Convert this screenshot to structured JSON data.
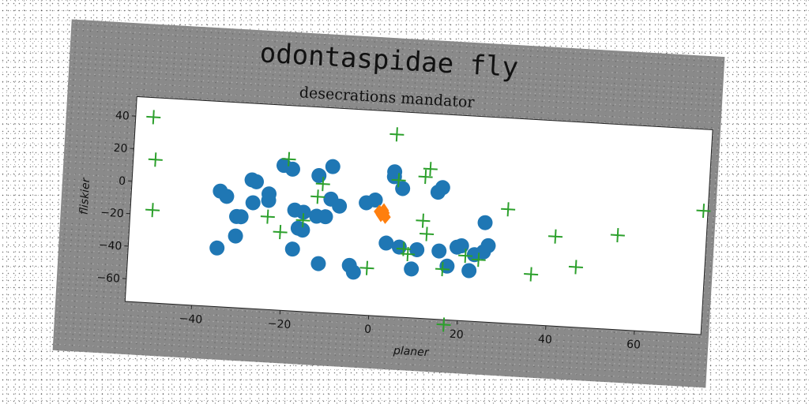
{
  "chart_data": {
    "type": "scatter",
    "title": "odontaspidae fly",
    "subtitle": "desecrations mandator",
    "xlabel": "planer",
    "ylabel": "fliskier",
    "xlim": [
      -55,
      75
    ],
    "ylim": [
      -74,
      52
    ],
    "xticks": [
      -40,
      -20,
      0,
      20,
      40,
      60
    ],
    "yticks": [
      -60,
      -40,
      -20,
      0,
      20,
      40
    ],
    "grid": false,
    "series": [
      {
        "marker": "circle",
        "color": "#1f77b4",
        "points": [
          [
            -35,
            -3
          ],
          [
            -33.5,
            -6
          ],
          [
            -31,
            -18
          ],
          [
            -31,
            -30
          ],
          [
            -30,
            -18
          ],
          [
            -28,
            5
          ],
          [
            -27,
            4
          ],
          [
            -27.5,
            -9
          ],
          [
            -24,
            -3
          ],
          [
            -24,
            -7
          ],
          [
            -35,
            -38
          ],
          [
            -21,
            15
          ],
          [
            -19,
            13
          ],
          [
            -18,
            -12
          ],
          [
            -18,
            -36
          ],
          [
            -17,
            -23
          ],
          [
            -16,
            -24
          ],
          [
            -16,
            -13
          ],
          [
            -13,
            10
          ],
          [
            -13,
            -15
          ],
          [
            -11,
            -15
          ],
          [
            -10,
            16
          ],
          [
            -12,
            -44
          ],
          [
            -10,
            -4
          ],
          [
            -8,
            -8
          ],
          [
            -5,
            -44
          ],
          [
            -4,
            -48
          ],
          [
            -2,
            -5
          ],
          [
            0,
            -3
          ],
          [
            4,
            15
          ],
          [
            4,
            12
          ],
          [
            6,
            5
          ],
          [
            3,
            -29
          ],
          [
            6,
            -31
          ],
          [
            10,
            -32
          ],
          [
            9,
            -44
          ],
          [
            14,
            4
          ],
          [
            15,
            7
          ],
          [
            15,
            -32
          ],
          [
            17,
            -41
          ],
          [
            19,
            -29
          ],
          [
            20,
            -28
          ],
          [
            22,
            -43
          ],
          [
            23,
            -33
          ],
          [
            25,
            -31
          ],
          [
            26,
            -27
          ],
          [
            25,
            -13
          ]
        ]
      },
      {
        "marker": "diamond",
        "color": "#ff7f0e",
        "points": [
          [
            1,
            -10
          ],
          [
            1.5,
            -12
          ],
          [
            2,
            -9
          ],
          [
            2.5,
            -13
          ],
          [
            1.8,
            -11
          ],
          [
            2.2,
            -10.5
          ]
        ]
      },
      {
        "marker": "plus",
        "color": "#2ca02c",
        "points": [
          [
            -51,
            40
          ],
          [
            -50,
            14
          ],
          [
            -50,
            -17
          ],
          [
            -20,
            19
          ],
          [
            -21,
            -26
          ],
          [
            -12,
            5
          ],
          [
            -24,
            -17
          ],
          [
            -16,
            -18
          ],
          [
            -13,
            -3
          ],
          [
            4,
            38
          ],
          [
            5,
            10
          ],
          [
            12,
            18
          ],
          [
            11,
            13
          ],
          [
            -1,
            -45
          ],
          [
            7,
            -32
          ],
          [
            8,
            -35
          ],
          [
            11,
            -14
          ],
          [
            12,
            -22
          ],
          [
            16,
            -43
          ],
          [
            21,
            -34
          ],
          [
            24,
            -36
          ],
          [
            30,
            -4
          ],
          [
            36,
            -43
          ],
          [
            41,
            -19
          ],
          [
            46,
            -37
          ],
          [
            55,
            -16
          ],
          [
            74,
            2
          ],
          [
            17,
            -77
          ]
        ]
      }
    ]
  }
}
